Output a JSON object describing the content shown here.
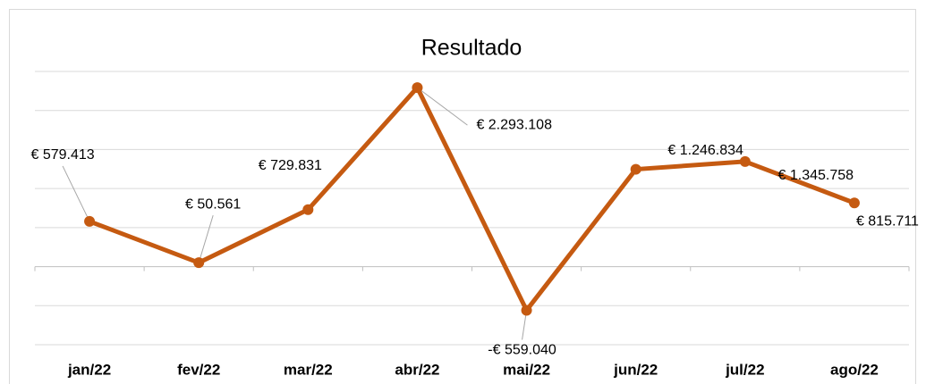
{
  "chart_data": {
    "type": "line",
    "title": "Resultado",
    "categories": [
      "jan/22",
      "fev/22",
      "mar/22",
      "abr/22",
      "mai/22",
      "jun/22",
      "jul/22",
      "ago/22"
    ],
    "values": [
      579413,
      50561,
      729831,
      2293108,
      -559040,
      1246834,
      1345758,
      815711
    ],
    "value_labels": [
      "€ 579.413",
      "€ 50.561",
      "€ 729.831",
      "€ 2.293.108",
      "-€ 559.040",
      "€ 1.246.834",
      "€ 1.345.758",
      "€ 815.711"
    ],
    "color": "#c55a11",
    "ylim": [
      -1000000,
      2500000
    ],
    "yticks": [
      -1000000,
      -500000,
      0,
      500000,
      1000000,
      1500000,
      2000000,
      2500000
    ],
    "grid": true
  }
}
